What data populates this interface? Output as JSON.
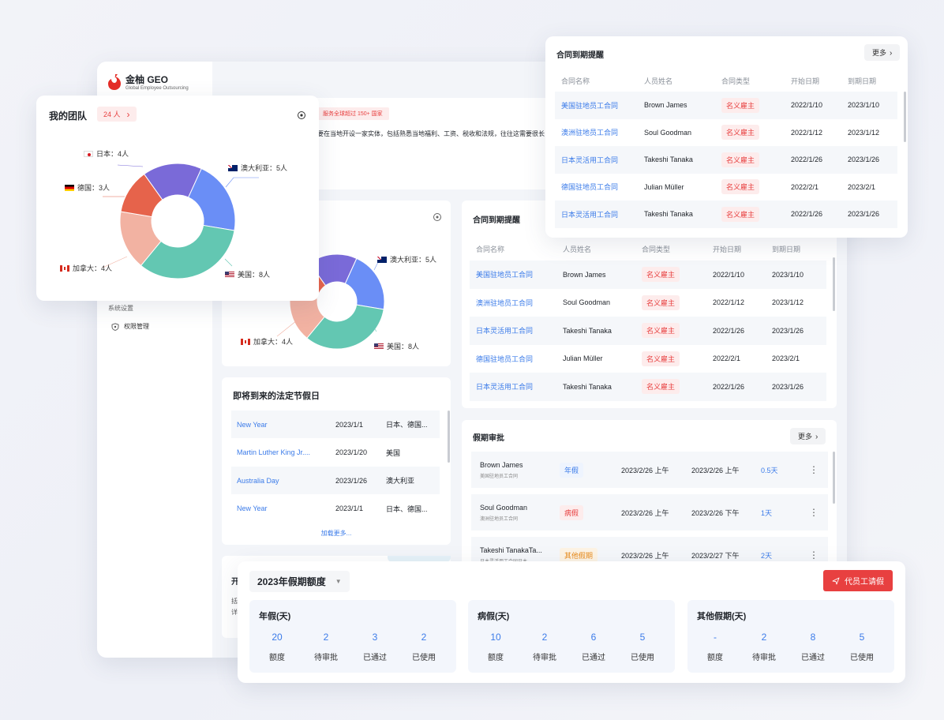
{
  "brand": {
    "name": "金柚 GEO",
    "subtitle": "Global Employee Outsourcing"
  },
  "banner": {
    "tag": "服务全球超过 150+ 国家",
    "text": "要在当地开设一家实体，包括熟悉当地福利、工资、税收和法规，往往这需要很长"
  },
  "sidebar": {
    "section": "系统设置",
    "item": "权限管理"
  },
  "team": {
    "title": "我的团队",
    "count": "24 人",
    "chart": [
      {
        "label": "日本：4人",
        "value": 4,
        "color": "#7a6ad8"
      },
      {
        "label": "澳大利亚：5人",
        "value": 5,
        "color": "#6a8ef6"
      },
      {
        "label": "美国：8人",
        "value": 8,
        "color": "#63c7b2"
      },
      {
        "label": "加拿大：4人",
        "value": 4,
        "color": "#f2b2a2"
      },
      {
        "label": "德国：3人",
        "value": 3,
        "color": "#e6634b"
      }
    ]
  },
  "bg_chart_labels": {
    "au": "澳大利亚：5人",
    "us": "美国：8人",
    "ca": "加拿大：4人"
  },
  "contracts": {
    "title": "合同到期提醒",
    "more": "更多",
    "headers": [
      "合同名称",
      "人员姓名",
      "合同类型",
      "开始日期",
      "到期日期"
    ],
    "rows": [
      {
        "name": "美国驻地员工合同",
        "person": "Brown James",
        "type": "名义雇主",
        "start": "2022/1/10",
        "end": "2023/1/10"
      },
      {
        "name": "澳洲驻地员工合同",
        "person": "Soul Goodman",
        "type": "名义雇主",
        "start": "2022/1/12",
        "end": "2023/1/12"
      },
      {
        "name": "日本灵活用工合同",
        "person": "Takeshi Tanaka",
        "type": "名义雇主",
        "start": "2022/1/26",
        "end": "2023/1/26"
      },
      {
        "name": "德国驻地员工合同",
        "person": "Julian Müller",
        "type": "名义雇主",
        "start": "2022/2/1",
        "end": "2023/2/1"
      },
      {
        "name": "日本灵活用工合同",
        "person": "Takeshi Tanaka",
        "type": "名义雇主",
        "start": "2022/1/26",
        "end": "2023/1/26"
      }
    ]
  },
  "holidays": {
    "title": "即将到来的法定节假日",
    "rows": [
      {
        "name": "New Year",
        "date": "2023/1/1",
        "country": "日本、德国..."
      },
      {
        "name": "Martin Luther King Jr....",
        "date": "2023/1/20",
        "country": "美国"
      },
      {
        "name": "Australia Day",
        "date": "2023/1/26",
        "country": "澳大利亚"
      },
      {
        "name": "New Year",
        "date": "2023/1/1",
        "country": "日本、德国..."
      }
    ],
    "load_more": "加载更多..."
  },
  "leave_approval": {
    "title": "假期审批",
    "more": "更多",
    "rows": [
      {
        "name": "Brown James",
        "contract": "美国驻地员工合同",
        "type": "年假",
        "type_style": "blue",
        "from": "2023/2/26 上午",
        "to": "2023/2/26 上午",
        "days": "0.5天"
      },
      {
        "name": "Soul Goodman",
        "contract": "澳洲驻地员工合同",
        "type": "病假",
        "type_style": "red",
        "from": "2023/2/26 上午",
        "to": "2023/2/26 下午",
        "days": "1天"
      },
      {
        "name": "Takeshi TanakaTa...",
        "contract": "日本灵活用工合同日本...",
        "type": "其他假期",
        "type_style": "orange",
        "from": "2023/2/26 上午",
        "to": "2023/2/27 下午",
        "days": "2天"
      }
    ]
  },
  "quota": {
    "title": "2023年假期额度",
    "apply_button": "代员工请假",
    "groups": [
      {
        "title": "年假(天)",
        "stats": [
          {
            "num": "20",
            "label": "额度"
          },
          {
            "num": "2",
            "label": "待审批"
          },
          {
            "num": "3",
            "label": "已通过"
          },
          {
            "num": "2",
            "label": "已使用"
          }
        ]
      },
      {
        "title": "病假(天)",
        "stats": [
          {
            "num": "10",
            "label": "额度"
          },
          {
            "num": "2",
            "label": "待审批"
          },
          {
            "num": "6",
            "label": "已通过"
          },
          {
            "num": "5",
            "label": "已使用"
          }
        ]
      },
      {
        "title": "其他假期(天)",
        "stats": [
          {
            "num": "-",
            "label": "额度"
          },
          {
            "num": "2",
            "label": "待审批"
          },
          {
            "num": "8",
            "label": "已通过"
          },
          {
            "num": "5",
            "label": "已使用"
          }
        ]
      }
    ]
  },
  "partial_texts": {
    "open": "开",
    "line1": "括",
    "line2": "详"
  },
  "colors": {
    "accent": "#3b7be9",
    "danger": "#e84040",
    "brand_red": "#e52d27"
  }
}
